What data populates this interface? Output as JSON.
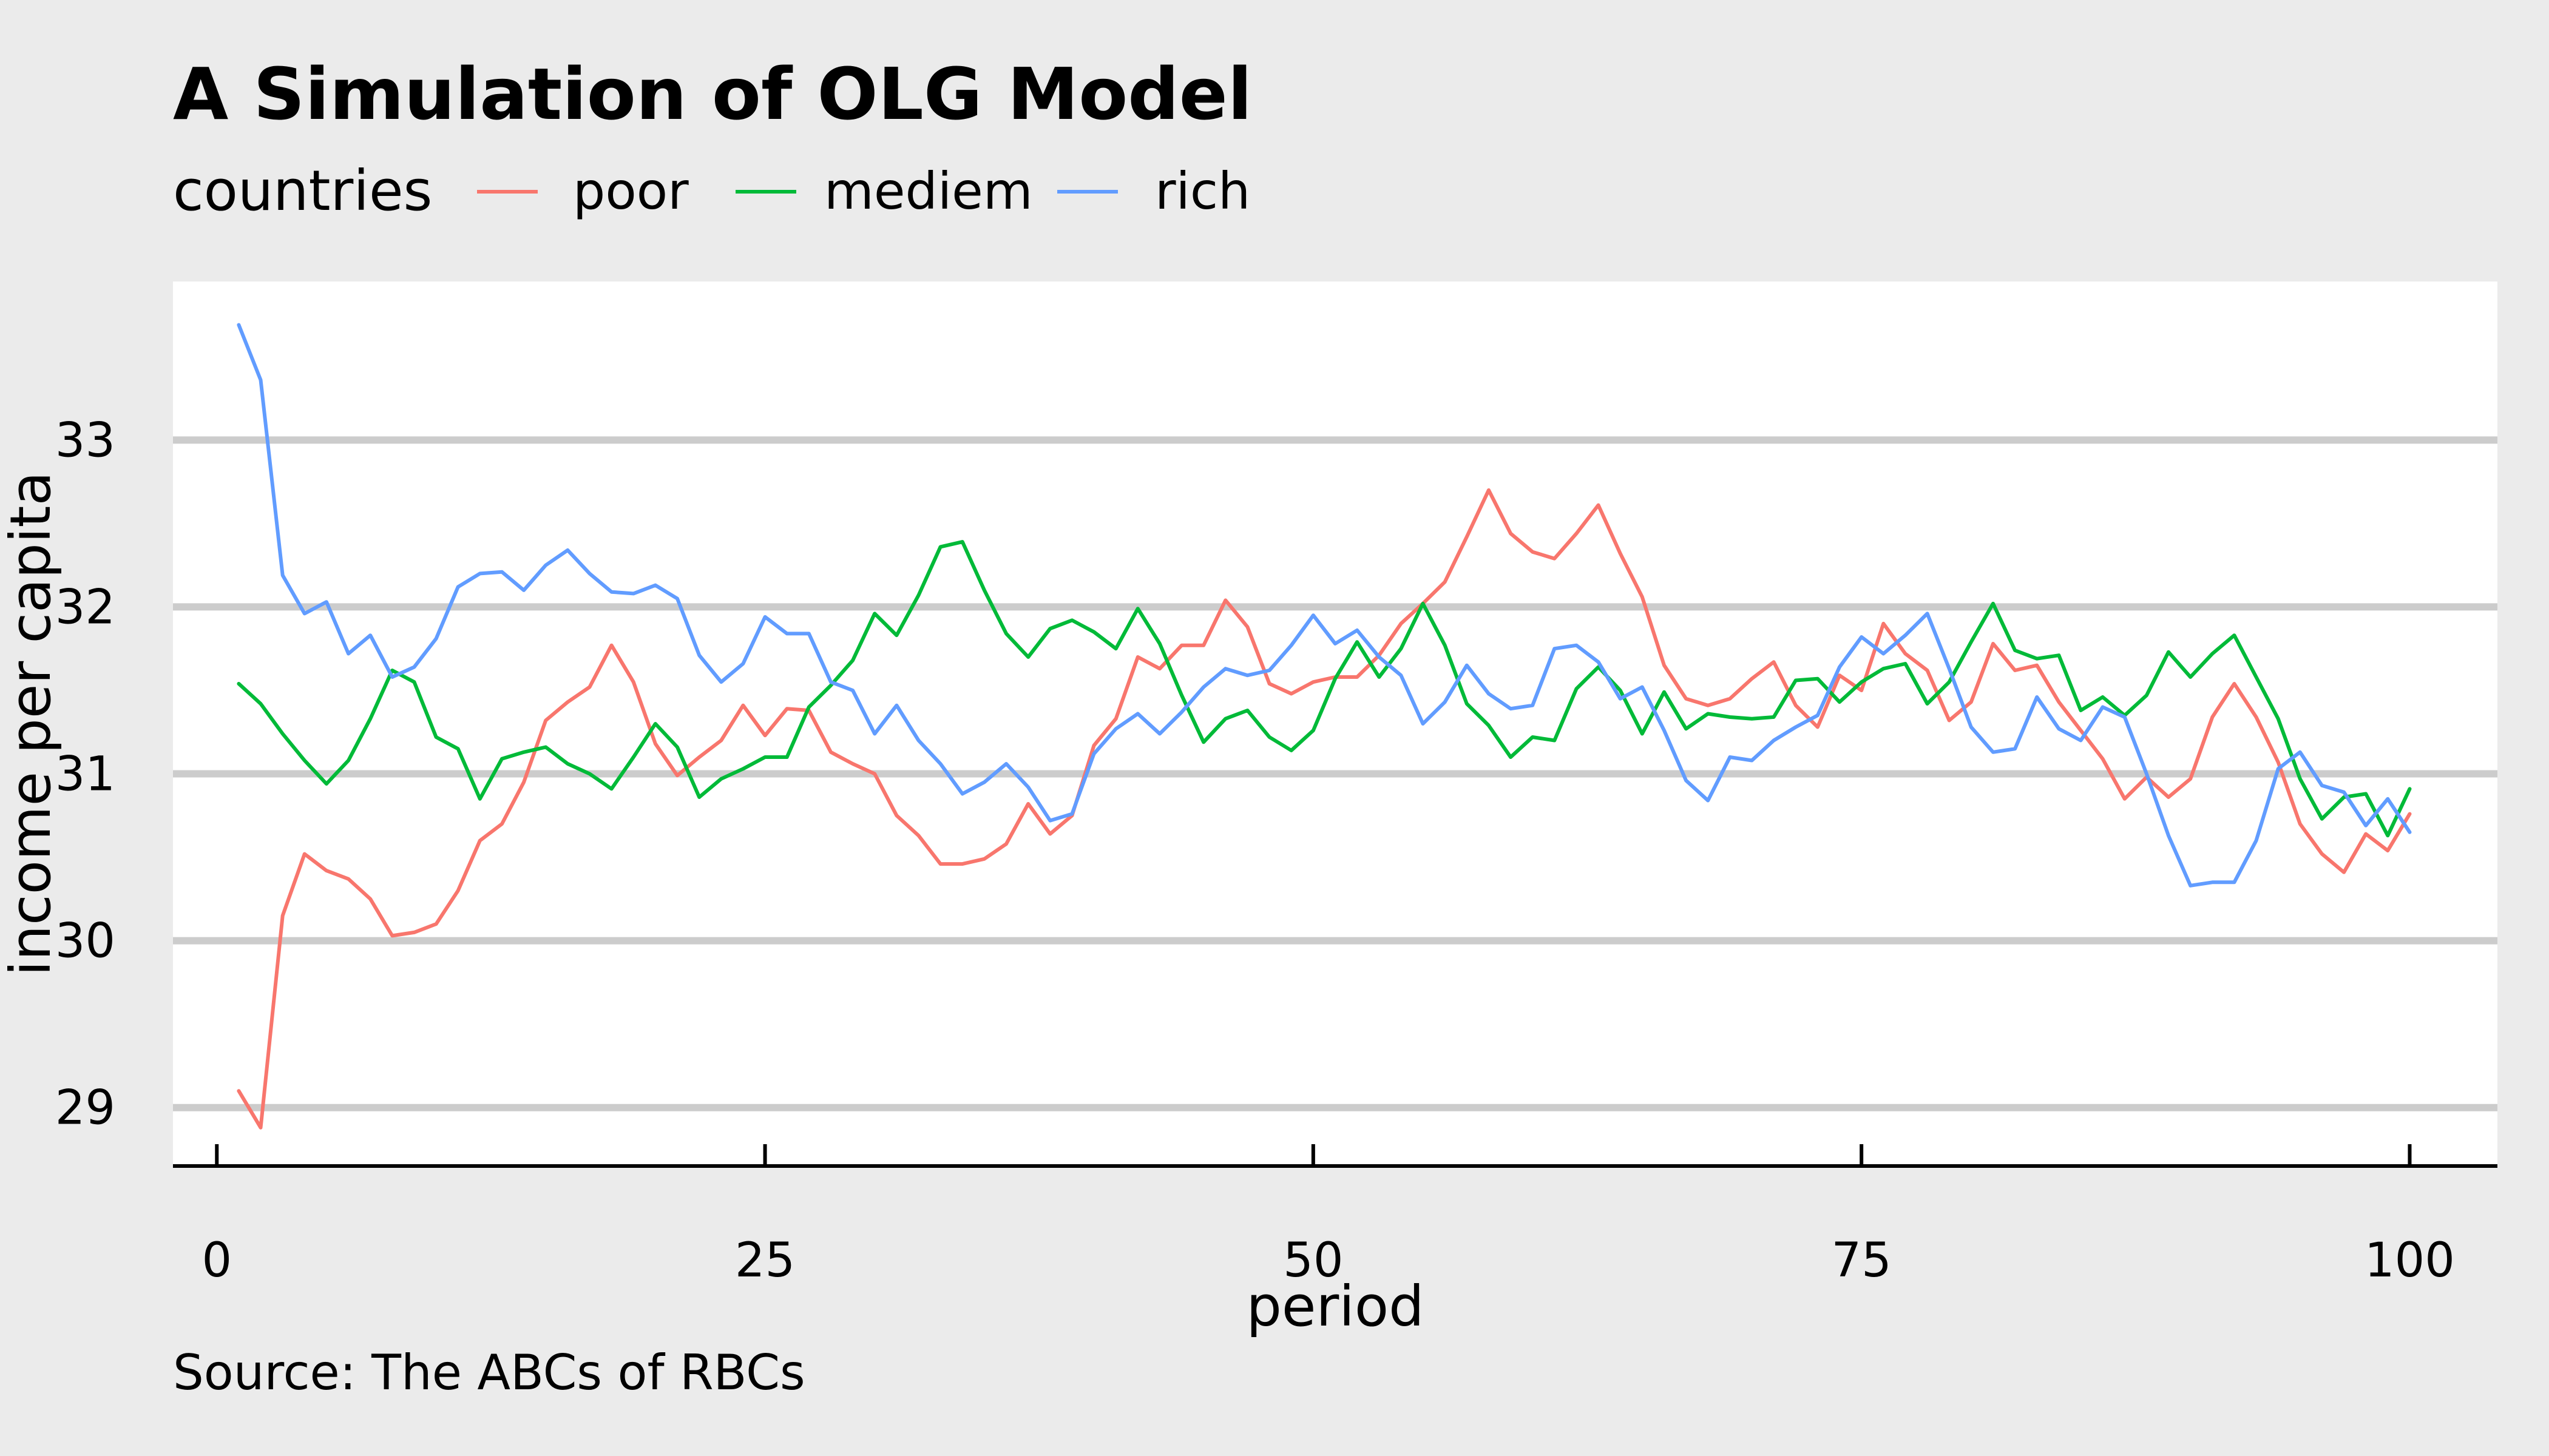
{
  "chart_data": {
    "type": "line",
    "title": "A Simulation of OLG Model",
    "xlabel": "period",
    "ylabel": "income per capita",
    "caption": "Source: The ABCs of RBCs",
    "legend_title": "countries",
    "legend_position": "top-left",
    "grid": "horizontal major",
    "xlim": [
      -2,
      104
    ],
    "ylim": [
      28.65,
      33.95
    ],
    "xticks": [
      0,
      25,
      50,
      75,
      100
    ],
    "xtick_labels": [
      "0",
      "25",
      "50",
      "75",
      "100"
    ],
    "yticks": [
      29,
      30,
      31,
      32,
      33
    ],
    "ytick_labels": [
      "29",
      "30",
      "31",
      "32",
      "33"
    ],
    "background": "#ebebeb",
    "panel_background": "#ffffff",
    "x": [
      1,
      2,
      3,
      4,
      5,
      6,
      7,
      8,
      9,
      10,
      11,
      12,
      13,
      14,
      15,
      16,
      17,
      18,
      19,
      20,
      21,
      22,
      23,
      24,
      25,
      26,
      27,
      28,
      29,
      30,
      31,
      32,
      33,
      34,
      35,
      36,
      37,
      38,
      39,
      40,
      41,
      42,
      43,
      44,
      45,
      46,
      47,
      48,
      49,
      50,
      51,
      52,
      53,
      54,
      55,
      56,
      57,
      58,
      59,
      60,
      61,
      62,
      63,
      64,
      65,
      66,
      67,
      68,
      69,
      70,
      71,
      72,
      73,
      74,
      75,
      76,
      77,
      78,
      79,
      80,
      81,
      82,
      83,
      84,
      85,
      86,
      87,
      88,
      89,
      90,
      91,
      92,
      93,
      94,
      95,
      96,
      97,
      98,
      99,
      100
    ],
    "series": [
      {
        "name": "poor",
        "color": "#f8766d",
        "values": [
          29.1,
          28.88,
          30.15,
          30.52,
          30.42,
          30.37,
          30.25,
          30.03,
          30.05,
          30.1,
          30.3,
          30.6,
          30.7,
          30.95,
          31.32,
          31.43,
          31.52,
          31.77,
          31.55,
          31.18,
          30.99,
          31.1,
          31.2,
          31.41,
          31.23,
          31.39,
          31.38,
          31.13,
          31.06,
          31.0,
          30.75,
          30.63,
          30.46,
          30.46,
          30.49,
          30.58,
          30.82,
          30.64,
          30.75,
          31.17,
          31.33,
          31.7,
          31.63,
          31.77,
          31.77,
          32.04,
          31.88,
          31.54,
          31.48,
          31.55,
          31.58,
          31.58,
          31.71,
          31.9,
          32.02,
          32.15,
          32.42,
          32.7,
          32.44,
          32.33,
          32.29,
          32.44,
          32.61,
          32.32,
          32.06,
          31.65,
          31.45,
          31.41,
          31.45,
          31.57,
          31.67,
          31.41,
          31.28,
          31.59,
          31.5,
          31.9,
          31.72,
          31.62,
          31.32,
          31.43,
          31.78,
          31.62,
          31.65,
          31.43,
          31.26,
          31.09,
          30.85,
          30.98,
          30.86,
          30.97,
          31.34,
          31.54,
          31.34,
          31.07,
          30.7,
          30.52,
          30.41,
          30.64,
          30.54,
          30.76
        ]
      },
      {
        "name": "mediem",
        "color": "#00ba38",
        "values": [
          31.54,
          31.42,
          31.24,
          31.08,
          30.94,
          31.08,
          31.33,
          31.62,
          31.55,
          31.22,
          31.15,
          30.85,
          31.09,
          31.13,
          31.16,
          31.06,
          31.0,
          30.91,
          31.1,
          31.3,
          31.16,
          30.86,
          30.97,
          31.03,
          31.1,
          31.1,
          31.4,
          31.53,
          31.68,
          31.96,
          31.83,
          32.07,
          32.36,
          32.39,
          32.1,
          31.84,
          31.7,
          31.87,
          31.92,
          31.85,
          31.75,
          31.99,
          31.78,
          31.47,
          31.19,
          31.33,
          31.38,
          31.22,
          31.14,
          31.26,
          31.57,
          31.79,
          31.58,
          31.75,
          32.02,
          31.77,
          31.42,
          31.29,
          31.1,
          31.22,
          31.2,
          31.51,
          31.64,
          31.5,
          31.24,
          31.49,
          31.27,
          31.36,
          31.34,
          31.33,
          31.34,
          31.56,
          31.57,
          31.43,
          31.55,
          31.63,
          31.66,
          31.42,
          31.55,
          31.79,
          32.02,
          31.74,
          31.69,
          31.71,
          31.38,
          31.46,
          31.35,
          31.47,
          31.73,
          31.58,
          31.72,
          31.83,
          31.58,
          31.33,
          30.97,
          30.73,
          30.86,
          30.88,
          30.63,
          30.91
        ]
      },
      {
        "name": "rich",
        "color": "#619cff",
        "values": [
          33.69,
          33.36,
          32.19,
          31.96,
          32.03,
          31.72,
          31.83,
          31.58,
          31.64,
          31.81,
          32.12,
          32.2,
          32.21,
          32.1,
          32.25,
          32.34,
          32.2,
          32.09,
          32.08,
          32.13,
          32.05,
          31.71,
          31.55,
          31.66,
          31.94,
          31.84,
          31.84,
          31.55,
          31.5,
          31.24,
          31.41,
          31.2,
          31.06,
          30.88,
          30.95,
          31.06,
          30.92,
          30.72,
          30.76,
          31.12,
          31.27,
          31.36,
          31.24,
          31.37,
          31.52,
          31.63,
          31.59,
          31.62,
          31.77,
          31.95,
          31.78,
          31.86,
          31.7,
          31.59,
          31.3,
          31.43,
          31.65,
          31.48,
          31.39,
          31.41,
          31.75,
          31.77,
          31.67,
          31.45,
          31.52,
          31.26,
          30.96,
          30.84,
          31.1,
          31.08,
          31.2,
          31.28,
          31.35,
          31.64,
          31.82,
          31.72,
          31.83,
          31.96,
          31.63,
          31.28,
          31.13,
          31.15,
          31.46,
          31.27,
          31.2,
          31.4,
          31.34,
          31.0,
          30.63,
          30.33,
          30.35,
          30.35,
          30.6,
          31.03,
          31.13,
          30.93,
          30.89,
          30.69,
          30.85,
          30.65
        ]
      }
    ]
  }
}
